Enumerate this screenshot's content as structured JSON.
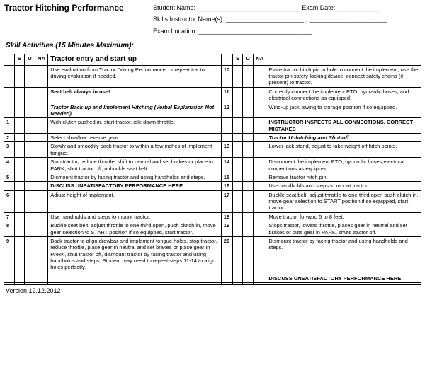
{
  "header": {
    "title": "Tractor Hitching Performance",
    "student_label": "Student Name: _____________________________ Exam Date: ____________",
    "skills_label": "Skills Instructor Name(s): ______________________ , ______________________",
    "exam_loc_label": "Exam Location: ________________________________"
  },
  "subtitle": "Skill Activities (15 Minutes Maximum):",
  "cols": {
    "s": "S",
    "u": "U",
    "na": "NA"
  },
  "sectionL": "Tractor entry and start-up",
  "left": [
    {
      "n": "",
      "t": "Use evaluation from Tractor Driving Performance, or repeat tractor driving evaluation if needed."
    },
    {
      "n": "",
      "t": "Seat belt always in use!",
      "b": 1,
      "d": 1
    },
    {
      "n": "",
      "t": "Tractor Back-up and Implement Hitching (Verbal Explanation Not Needed)",
      "b": 1,
      "i": 1,
      "d": 1
    },
    {
      "n": "1",
      "t": "With clutch pushed in, start tractor, idle down throttle."
    },
    {
      "n": "2",
      "t": "Select slow/low reverse gear."
    },
    {
      "n": "3",
      "t": "Slowly and smoothly back tractor to within a few inches of implement tongue."
    },
    {
      "n": "4",
      "t": "Stop tractor, reduce throttle, shift to neutral and set brakes or place in PARK, shut tractor off, unbuckle seat belt."
    },
    {
      "n": "5",
      "t": "Dismount tractor by facing tractor and using handholds and steps."
    },
    {
      "n": "",
      "t": "DISCUSS UNSATISFACTORY PERFORMANCE HERE",
      "b": 1,
      "d": 1
    },
    {
      "n": "6",
      "t": "Adjust height of implement."
    },
    {
      "n": "7",
      "t": "Use handholds and steps to mount tractor."
    },
    {
      "n": "8",
      "t": "Buckle seat belt, adjust throttle to one-third open, push clutch in, move gear selection to START position if so equipped, start tractor."
    },
    {
      "n": "9",
      "t": "Back tractor to align drawbar and implement tongue holes, stop tractor, reduce throttle, place gear in neutral and set brakes or place gear in PARK, shut tractor off, dismount tractor by facing tractor and using handholds and steps. Student may need to repeat steps 11-14 to align holes perfectly."
    },
    {
      "n": "",
      "t": ""
    },
    {
      "n": "",
      "t": ""
    }
  ],
  "right": [
    {
      "n": "10",
      "t": "Place tractor hitch pin in hole to connect the implement, use the tractor pin safety-locking device; connect safety chains (if present) to tractor."
    },
    {
      "n": "11",
      "t": "Correctly connect the implement PTO, hydraulic hoses, and electrical connections as equipped.",
      "d": 1
    },
    {
      "n": "12",
      "t": "Wind-up jack, swing to storage position if so equipped.",
      "d": 1
    },
    {
      "n": "",
      "t": "INSTRUCTOR INSPECTS ALL CONNECTIONS. CORRECT MISTAKES",
      "b": 1
    },
    {
      "n": "",
      "t": "Tractor Unhitching and Shut-off",
      "b": 1,
      "i": 1
    },
    {
      "n": "13",
      "t": "Lower jack stand, adjust to take weight off hitch points."
    },
    {
      "n": "14",
      "t": "Disconnect the implement PTO, hydraulic hoses,electrical connections as equipped."
    },
    {
      "n": "15",
      "t": "Remove tractor hitch pin."
    },
    {
      "n": "16",
      "t": "Use handholds and steps to mount tractor.",
      "d": 1
    },
    {
      "n": "17",
      "t": "Buckle seat belt, adjust throttle to one-third open push clutch in, move gear selection to START position if so equipped, start tractor."
    },
    {
      "n": "18",
      "t": "Move tractor forward 5 to 8 feet."
    },
    {
      "n": "19",
      "t": "Stops tractor, lowers throttle, places gear in neutral and set brakes or puts gear in PARK, shuts tractor off."
    },
    {
      "n": "20",
      "t": "Dismount tractor by facing tractor and using handholds and steps."
    },
    {
      "n": "",
      "t": ""
    },
    {
      "n": "",
      "t": "DISCUSS UNSATISFACTORY PERFORMANCE HERE",
      "b": 1,
      "d": 1
    },
    {
      "n": "",
      "t": ""
    }
  ],
  "version": "Version 12.12.2012"
}
